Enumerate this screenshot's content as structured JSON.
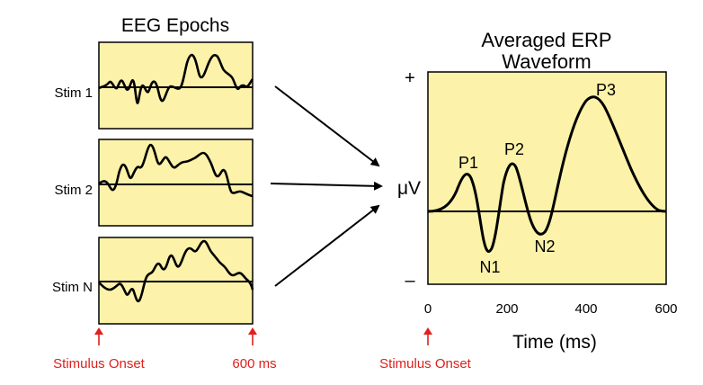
{
  "colors": {
    "panel_fill": "#fcf2a9",
    "stroke": "#000000",
    "accent": "#e0201c"
  },
  "epochs": {
    "title": "EEG Epochs",
    "rows": [
      {
        "label": "Stim 1"
      },
      {
        "label": "Stim 2"
      },
      {
        "label": "Stim N"
      }
    ],
    "onset_label": "Stimulus Onset",
    "end_label": "600 ms"
  },
  "erp": {
    "title_line1": "Averaged ERP",
    "title_line2": "Waveform",
    "y_plus": "+",
    "y_minus": "–",
    "y_axis_label": "μV",
    "x_axis_label": "Time (ms)",
    "x_ticks": [
      "0",
      "200",
      "400",
      "600"
    ],
    "onset_label": "Stimulus Onset",
    "peaks": [
      {
        "label": "P1"
      },
      {
        "label": "N1"
      },
      {
        "label": "P2"
      },
      {
        "label": "N2"
      },
      {
        "label": "P3"
      }
    ]
  }
}
